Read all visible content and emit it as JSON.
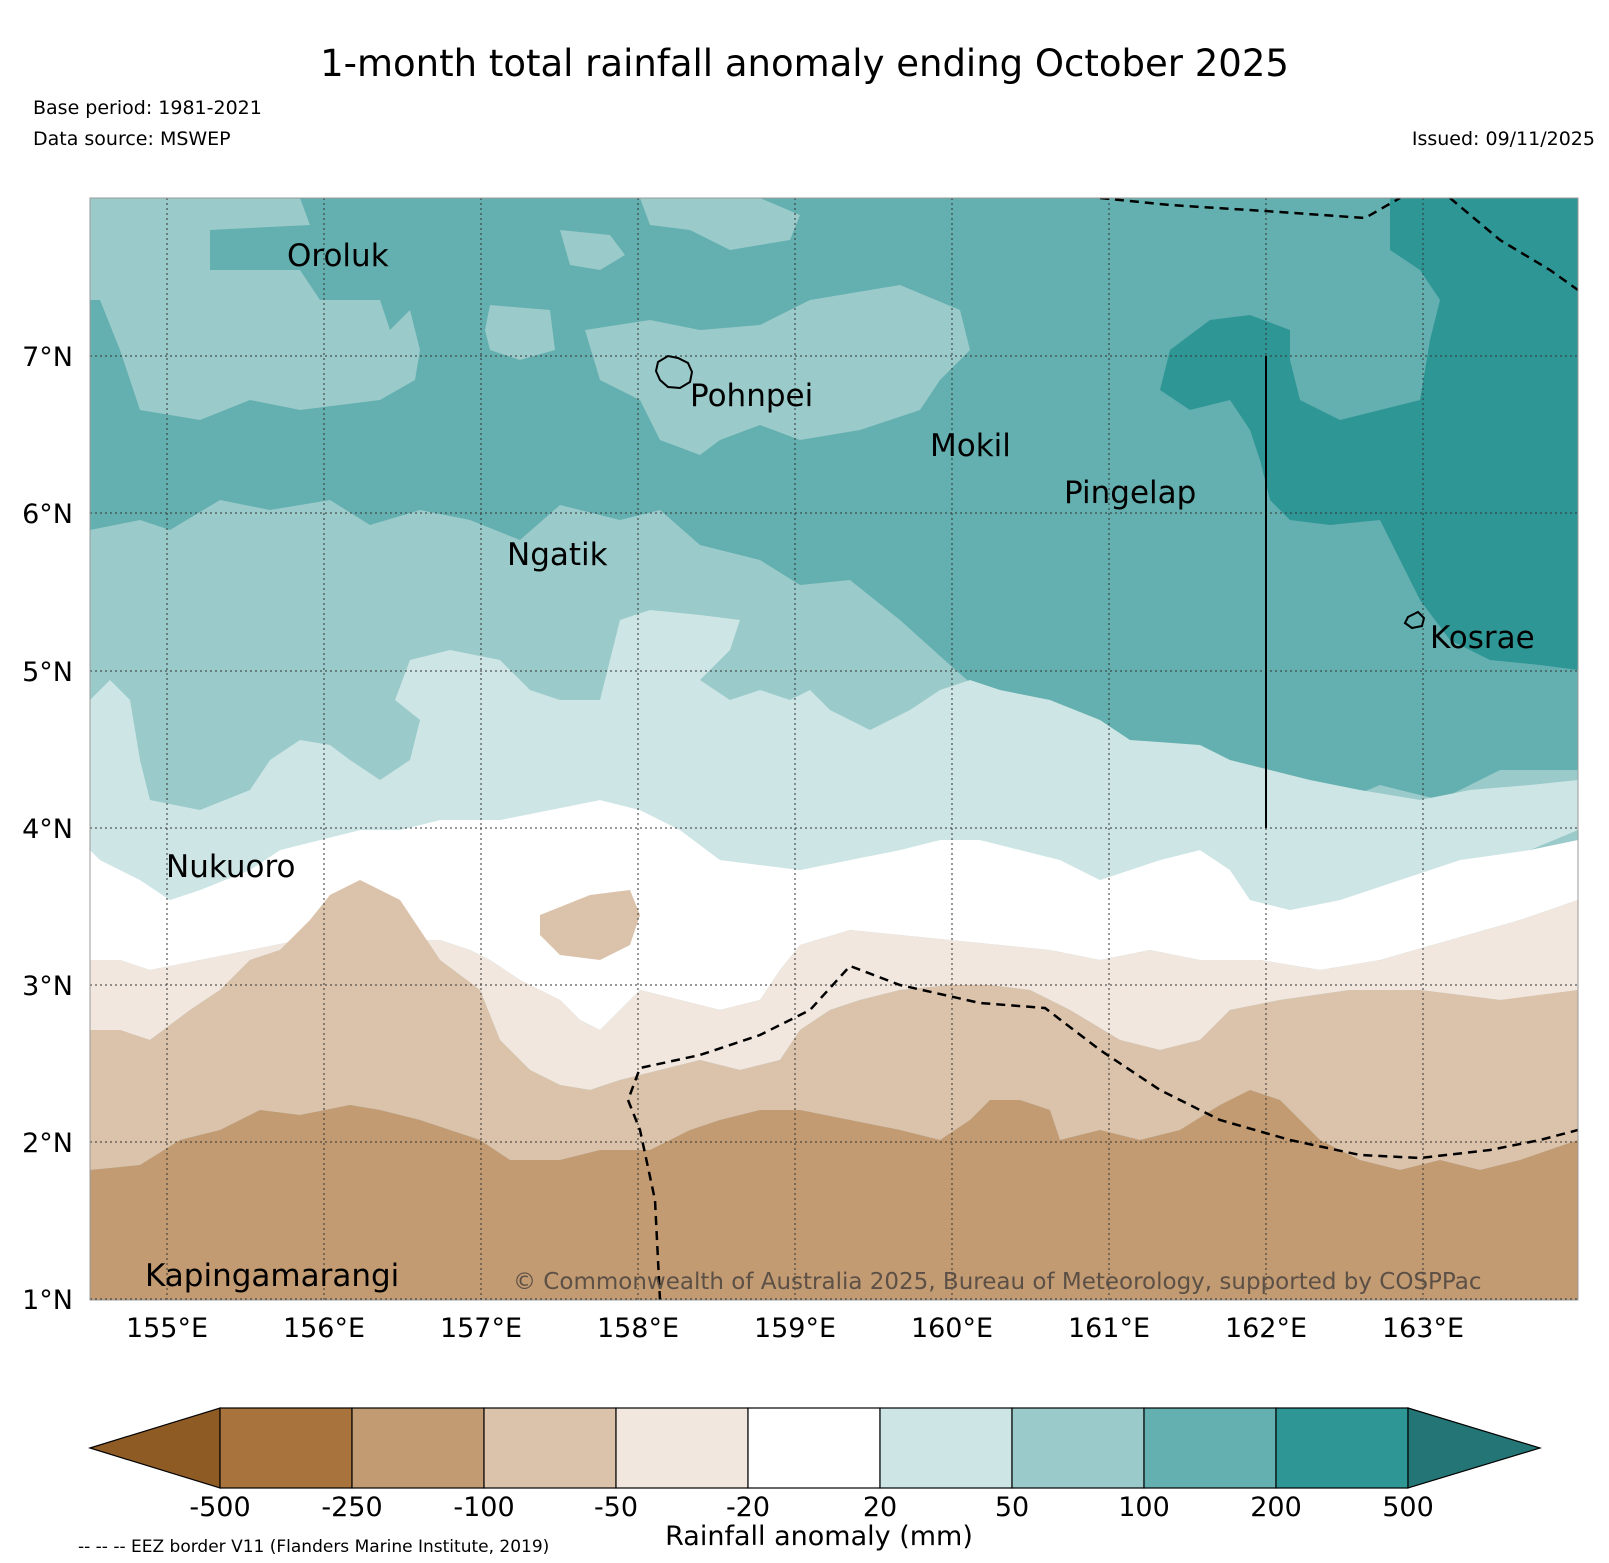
{
  "header": {
    "title": "1-month total rainfall anomaly ending October 2025",
    "base_period": "Base period: 1981-2021",
    "data_source": "Data source: MSWEP",
    "issued": "Issued: 09/11/2025"
  },
  "map": {
    "lon_ticks": [
      "155°E",
      "156°E",
      "157°E",
      "158°E",
      "159°E",
      "160°E",
      "161°E",
      "162°E",
      "163°E"
    ],
    "lat_ticks": [
      "7°N",
      "6°N",
      "5°N",
      "4°N",
      "3°N",
      "2°N",
      "1°N"
    ],
    "places": [
      {
        "name": "Oroluk"
      },
      {
        "name": "Pohnpei"
      },
      {
        "name": "Mokil"
      },
      {
        "name": "Pingelap"
      },
      {
        "name": "Ngatik"
      },
      {
        "name": "Kosrae"
      },
      {
        "name": "Nukuoro"
      },
      {
        "name": "Kapingamarangi"
      }
    ],
    "copyright": "© Commonwealth of Australia 2025, Bureau of Meteorology, supported by COSPPac"
  },
  "legend": {
    "title": "Rainfall anomaly (mm)",
    "ticks": [
      "-500",
      "-250",
      "-100",
      "-50",
      "-20",
      "20",
      "50",
      "100",
      "200",
      "500"
    ],
    "colors": [
      "#8f5b25",
      "#a8733d",
      "#c39b72",
      "#dbc2aa",
      "#f1e7de",
      "#ffffff",
      "#cde5e5",
      "#9acaca",
      "#64afaf",
      "#2f9696",
      "#247676"
    ],
    "eez_note": "-- -- -- EEZ border V11 (Flanders Marine Institute, 2019)"
  }
}
